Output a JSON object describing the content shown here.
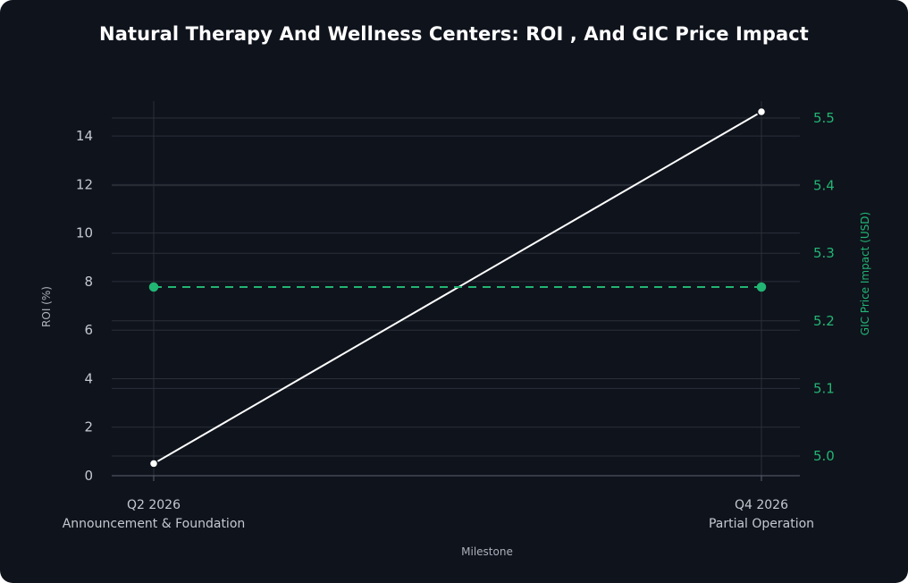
{
  "chart_data": {
    "type": "line",
    "title": "Natural Therapy And Wellness Centers: ROI , And GIC Price Impact",
    "xlabel": "Milestone",
    "ylabel": "ROI (%)",
    "y2label": "GIC Price Impact (USD)",
    "categories": [
      [
        "Q2 2026",
        "Announcement & Foundation"
      ],
      [
        "Q4 2026",
        "Partial Operation"
      ]
    ],
    "ylim": [
      0,
      15
    ],
    "y2lim": [
      4.98,
      5.51
    ],
    "yticks": [
      "0",
      "2",
      "4",
      "6",
      "8",
      "10",
      "12",
      "14"
    ],
    "y2ticks": [
      "5.0",
      "5.1",
      "5.2",
      "5.3",
      "5.4",
      "5.5"
    ],
    "grid": true,
    "series": [
      {
        "axis": "left",
        "values": [
          0.5,
          15.0
        ],
        "color": "#ffffff",
        "style": "solid"
      },
      {
        "axis": "right",
        "values": [
          5.25,
          5.25
        ],
        "color": "#22b573",
        "style": "dashed"
      }
    ]
  },
  "colors": {
    "background": "#0f131c",
    "grid": "#2a2f38",
    "text": "#c4c8cf",
    "accent": "#22b573"
  }
}
